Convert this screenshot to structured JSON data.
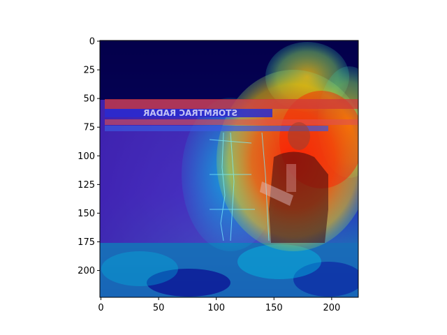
{
  "figure": {
    "type": "heatmap-overlay-image",
    "description_visible_text": {
      "overlay_banner_title": "STORMTRAC RADAR"
    }
  },
  "axes": {
    "x_ticks": [
      "0",
      "50",
      "100",
      "150",
      "200"
    ],
    "y_ticks": [
      "0",
      "25",
      "50",
      "75",
      "100",
      "125",
      "150",
      "175",
      "200"
    ],
    "x_range": [
      0,
      224
    ],
    "y_range": [
      0,
      224
    ]
  },
  "colors": {
    "hot": "#ff2a00",
    "warm": "#ffb000",
    "mid": "#00c8e6",
    "cool": "#3d2bbf",
    "cold": "#04004f",
    "border": "#000000"
  }
}
